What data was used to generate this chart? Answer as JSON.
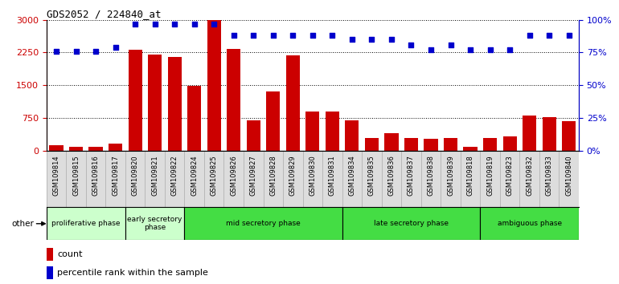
{
  "title": "GDS2052 / 224840_at",
  "samples": [
    "GSM109814",
    "GSM109815",
    "GSM109816",
    "GSM109817",
    "GSM109820",
    "GSM109821",
    "GSM109822",
    "GSM109824",
    "GSM109825",
    "GSM109826",
    "GSM109827",
    "GSM109828",
    "GSM109829",
    "GSM109830",
    "GSM109831",
    "GSM109834",
    "GSM109835",
    "GSM109836",
    "GSM109837",
    "GSM109838",
    "GSM109839",
    "GSM109818",
    "GSM109819",
    "GSM109823",
    "GSM109832",
    "GSM109833",
    "GSM109840"
  ],
  "counts": [
    120,
    80,
    90,
    160,
    2320,
    2200,
    2150,
    1480,
    3000,
    2330,
    700,
    1350,
    2180,
    900,
    890,
    700,
    280,
    390,
    280,
    270,
    280,
    80,
    280,
    320,
    800,
    760,
    680
  ],
  "percentiles": [
    76,
    76,
    76,
    79,
    97,
    97,
    97,
    97,
    97,
    88,
    88,
    88,
    88,
    88,
    88,
    85,
    85,
    85,
    81,
    77,
    81,
    77,
    77,
    77,
    88,
    88,
    88
  ],
  "bar_color": "#cc0000",
  "dot_color": "#0000cc",
  "ylim_left": [
    0,
    3000
  ],
  "ylim_right": [
    0,
    100
  ],
  "yticks_left": [
    0,
    750,
    1500,
    2250,
    3000
  ],
  "yticks_right": [
    0,
    25,
    50,
    75,
    100
  ],
  "phases": [
    {
      "label": "proliferative phase",
      "start": 0,
      "end": 4,
      "color": "#ccffcc"
    },
    {
      "label": "early secretory\nphase",
      "start": 4,
      "end": 7,
      "color": "#ccffcc"
    },
    {
      "label": "mid secretory phase",
      "start": 7,
      "end": 15,
      "color": "#44dd44"
    },
    {
      "label": "late secretory phase",
      "start": 15,
      "end": 22,
      "color": "#44dd44"
    },
    {
      "label": "ambiguous phase",
      "start": 22,
      "end": 27,
      "color": "#44dd44"
    }
  ],
  "background_color": "#dddddd",
  "plot_bg_color": "#ffffff",
  "grid_color": "#000000",
  "title_color": "#000000",
  "left_axis_color": "#cc0000",
  "right_axis_color": "#0000cc"
}
